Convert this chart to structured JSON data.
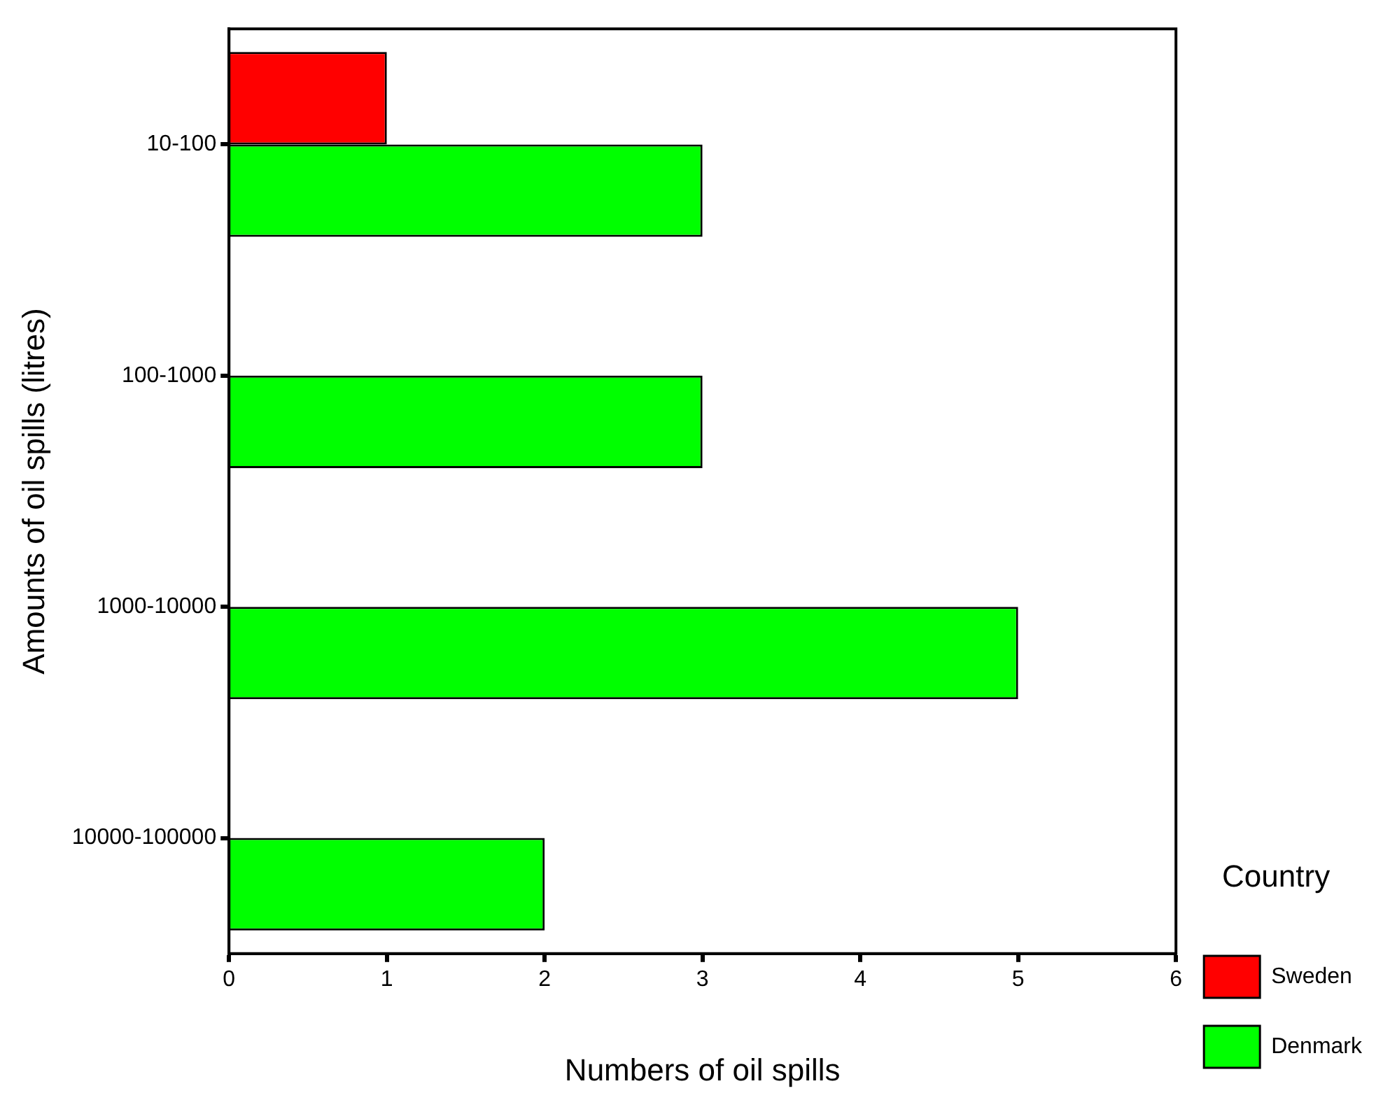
{
  "chart_data": {
    "type": "bar",
    "orientation": "horizontal",
    "xlabel": "Numbers of oil spills",
    "ylabel": "Amounts of oil spills (litres)",
    "legend_title": "Country",
    "categories": [
      "10-100",
      "100-1000",
      "1000-10000",
      "10000-100000"
    ],
    "series": [
      {
        "name": "Sweden",
        "color": "#ff0000",
        "values": [
          1,
          null,
          null,
          null
        ]
      },
      {
        "name": "Denmark",
        "color": "#00ff00",
        "values": [
          3,
          3,
          5,
          2
        ]
      }
    ],
    "xlim": [
      0,
      6
    ],
    "xticks": [
      0,
      1,
      2,
      3,
      4,
      5,
      6
    ],
    "grid": false,
    "legend": "right"
  }
}
